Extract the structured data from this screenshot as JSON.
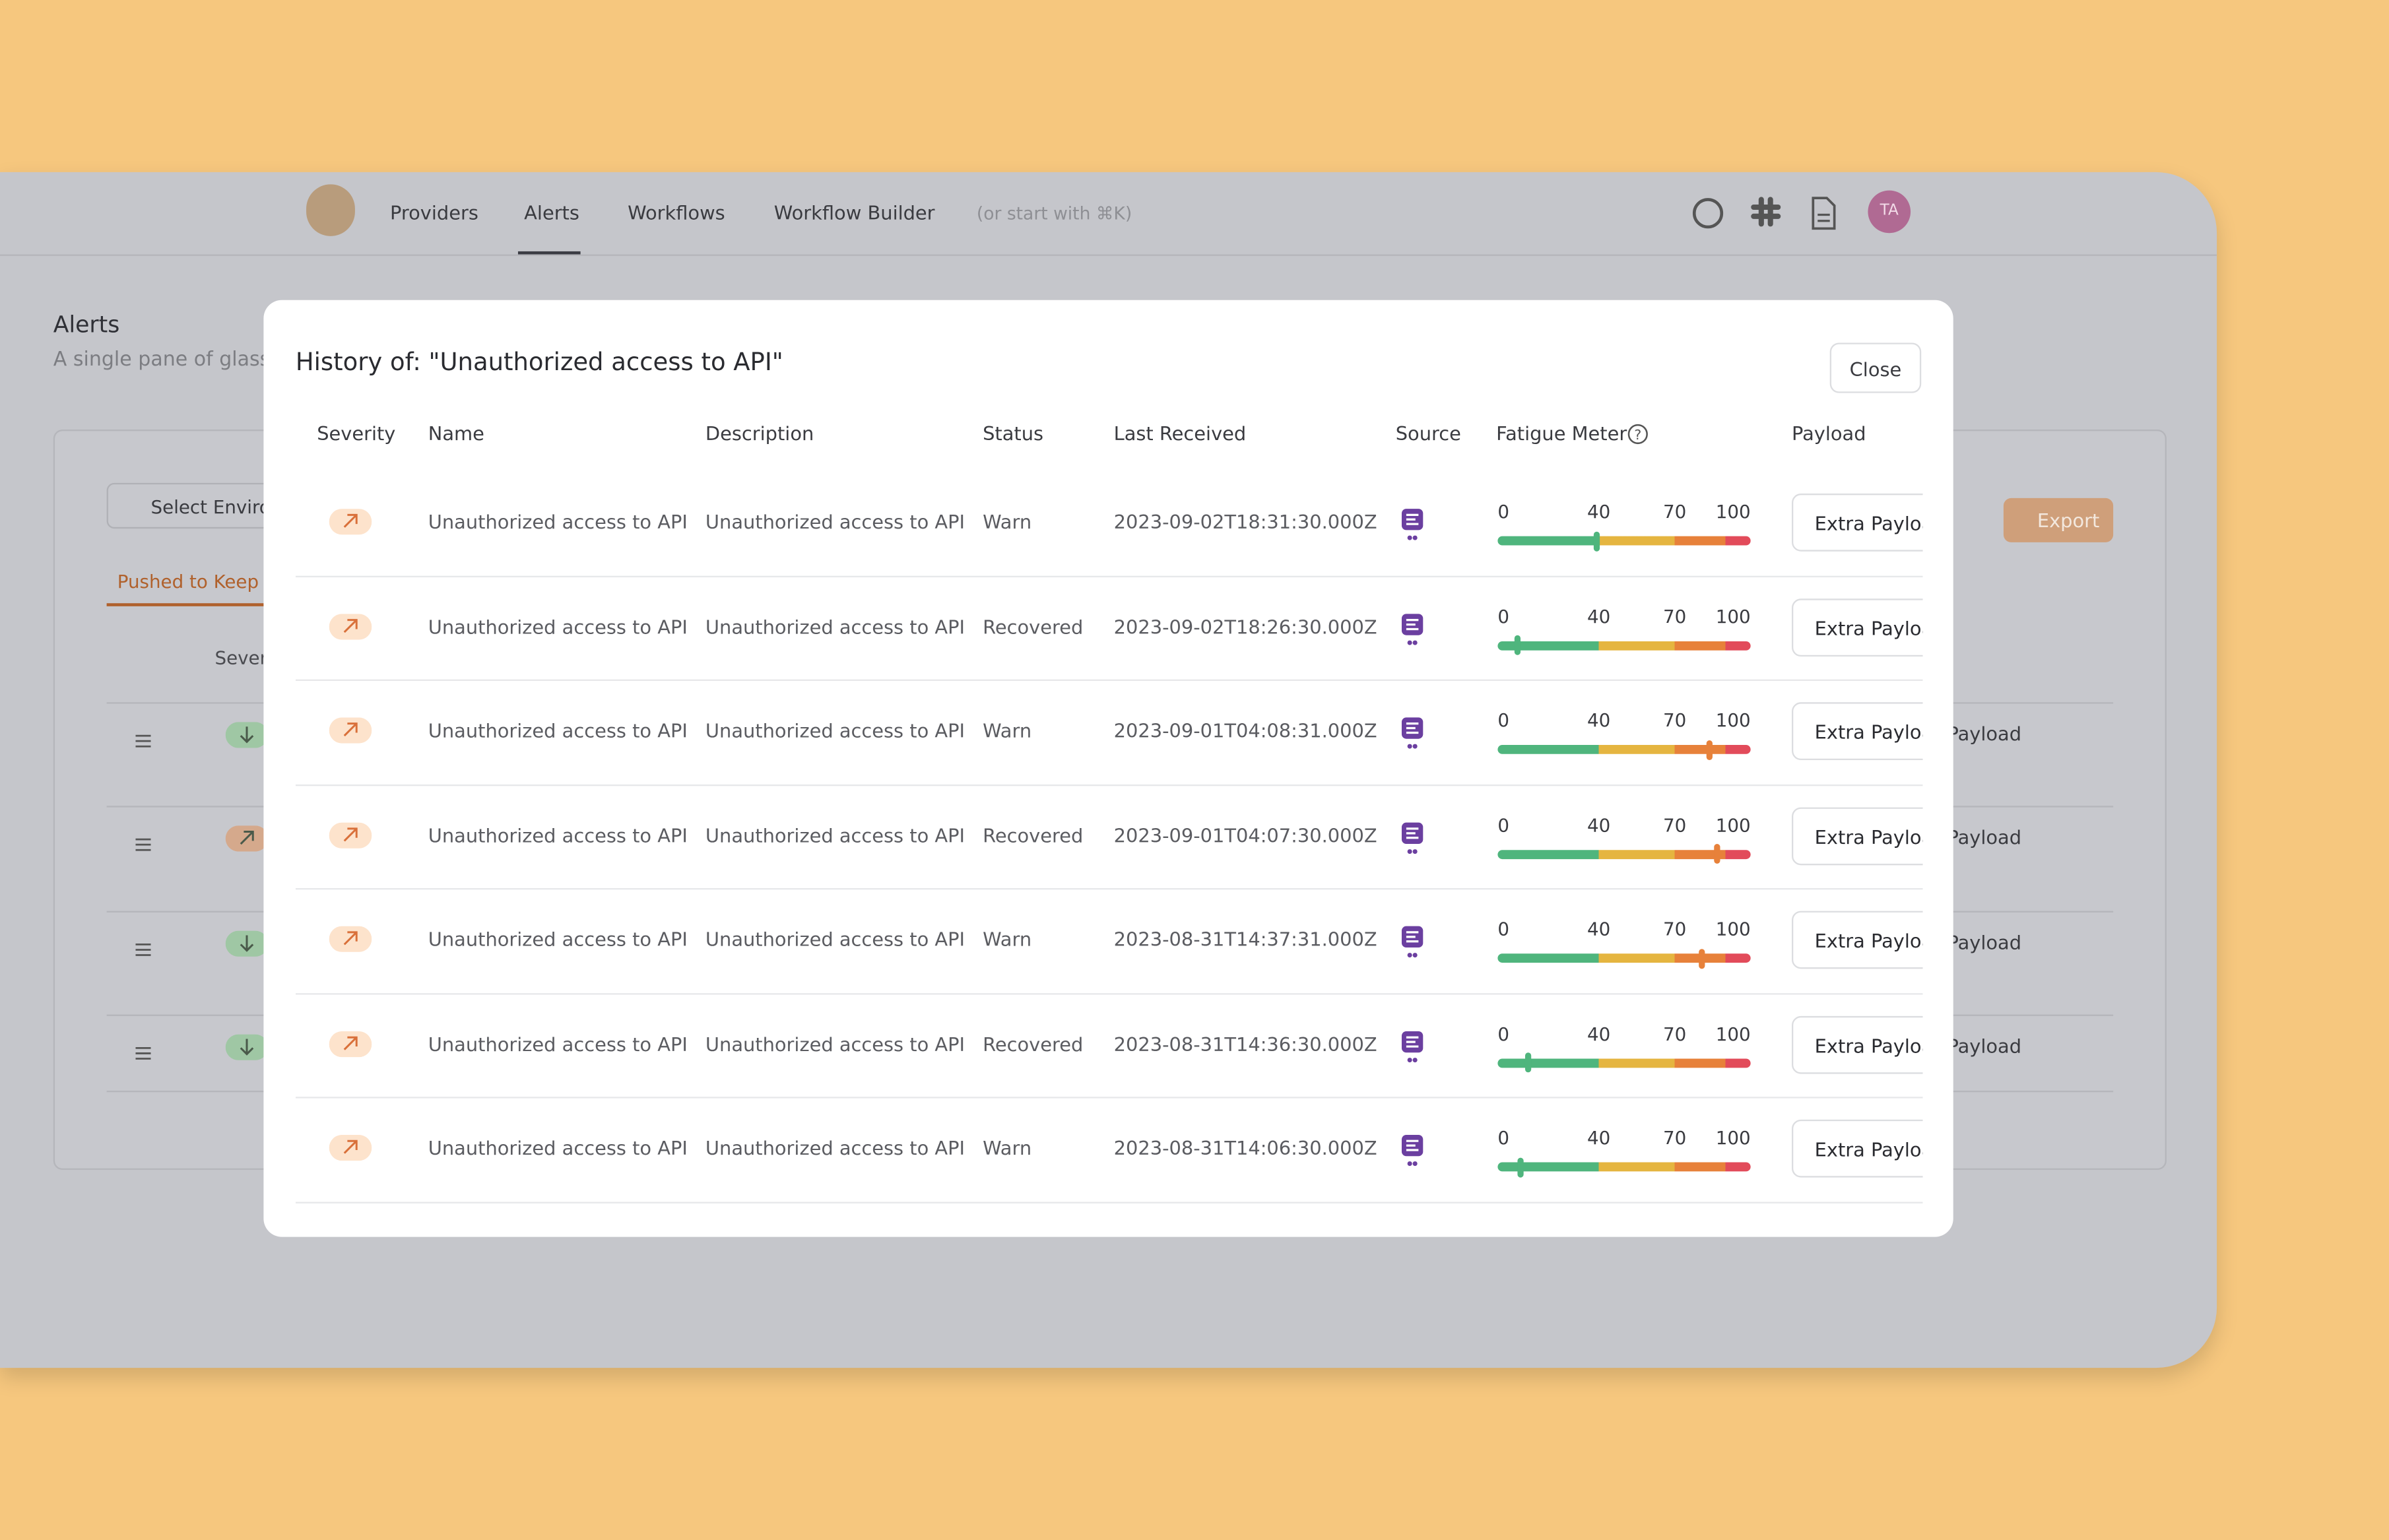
{
  "nav": {
    "items": [
      "Providers",
      "Alerts",
      "Workflows",
      "Workflow Builder"
    ],
    "search_hint": "(or start with ⌘K)",
    "avatar": "TA"
  },
  "page": {
    "title": "Alerts",
    "subtitle": "A single pane of glass",
    "environment": "Select Environment",
    "tab": "Pushed to Keep",
    "export": "Export",
    "column": "Severity",
    "payload_label": "Payload"
  },
  "modal": {
    "title": "History of: \"Unauthorized access to API\"",
    "close": "Close",
    "columns": [
      "Severity",
      "Name",
      "Description",
      "Status",
      "Last Received",
      "Source",
      "Fatigue Meter",
      "Payload"
    ],
    "meter_ticks": [
      0,
      40,
      70,
      100
    ],
    "rows": [
      {
        "name": "Unauthorized access to API",
        "description": "Unauthorized access to API",
        "status": "Warn",
        "last_received": "2023-09-02T18:31:30.000Z",
        "fatigue": 39,
        "payload": "Extra Payload"
      },
      {
        "name": "Unauthorized access to API",
        "description": "Unauthorized access to API",
        "status": "Recovered",
        "last_received": "2023-09-02T18:26:30.000Z",
        "fatigue": 8,
        "payload": "Extra Payload"
      },
      {
        "name": "Unauthorized access to API",
        "description": "Unauthorized access to API",
        "status": "Warn",
        "last_received": "2023-09-01T04:08:31.000Z",
        "fatigue": 84,
        "payload": "Extra Payload"
      },
      {
        "name": "Unauthorized access to API",
        "description": "Unauthorized access to API",
        "status": "Recovered",
        "last_received": "2023-09-01T04:07:30.000Z",
        "fatigue": 87,
        "payload": "Extra Payload"
      },
      {
        "name": "Unauthorized access to API",
        "description": "Unauthorized access to API",
        "status": "Warn",
        "last_received": "2023-08-31T14:37:31.000Z",
        "fatigue": 81,
        "payload": "Extra Payload"
      },
      {
        "name": "Unauthorized access to API",
        "description": "Unauthorized access to API",
        "status": "Recovered",
        "last_received": "2023-08-31T14:36:30.000Z",
        "fatigue": 12,
        "payload": "Extra Payload"
      },
      {
        "name": "Unauthorized access to API",
        "description": "Unauthorized access to API",
        "status": "Warn",
        "last_received": "2023-08-31T14:06:30.000Z",
        "fatigue": 9,
        "payload": "Extra Payload"
      }
    ]
  }
}
